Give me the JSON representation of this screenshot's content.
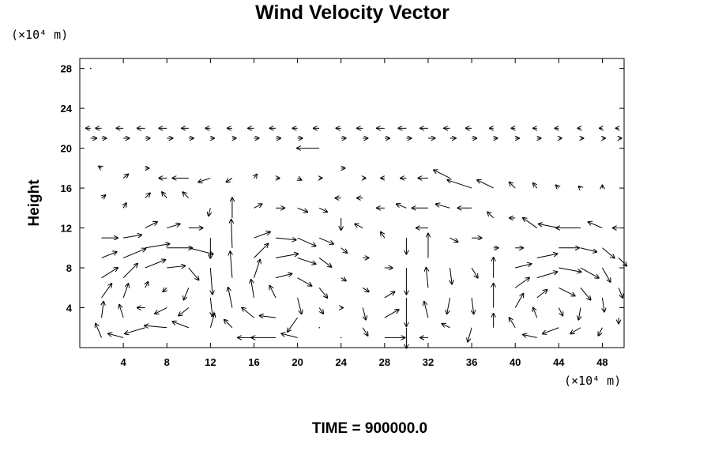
{
  "chart_data": {
    "type": "vector-field",
    "title": "Wind Velocity Vector",
    "ylabel": "Height",
    "y_unit": "(×10⁴ m)",
    "x_unit": "(×10⁴ m)",
    "xlim": [
      0,
      50
    ],
    "ylim": [
      0,
      29
    ],
    "x_ticks": [
      4,
      8,
      12,
      16,
      20,
      24,
      28,
      32,
      36,
      40,
      44,
      48
    ],
    "y_ticks": [
      4,
      8,
      12,
      16,
      20,
      24,
      28
    ],
    "time_label": "TIME = 900000.0",
    "grid": false,
    "colors": {
      "axis": "#000000",
      "arrow": "#000000",
      "background": "#ffffff"
    },
    "vectors": [
      {
        "x": 1,
        "y": 28,
        "u": 0,
        "v": 0
      },
      {
        "x": 1,
        "y": 22,
        "u": -0.5,
        "v": 0
      },
      {
        "x": 1,
        "y": 21,
        "u": 0.6,
        "v": 0
      },
      {
        "x": 2,
        "y": 22,
        "u": -0.6,
        "v": 0
      },
      {
        "x": 2,
        "y": 21,
        "u": 0.5,
        "v": 0
      },
      {
        "x": 2,
        "y": 18,
        "u": -0.3,
        "v": 0.2
      },
      {
        "x": 2,
        "y": 15,
        "u": 0.4,
        "v": 0.3
      },
      {
        "x": 2,
        "y": 11,
        "u": 1.6,
        "v": 0
      },
      {
        "x": 2,
        "y": 9,
        "u": 1.5,
        "v": 0.6
      },
      {
        "x": 2,
        "y": 7,
        "u": 1.6,
        "v": 1.0
      },
      {
        "x": 2,
        "y": 5,
        "u": 1.0,
        "v": 1.4
      },
      {
        "x": 2,
        "y": 3,
        "u": 0.2,
        "v": 1.6
      },
      {
        "x": 2,
        "y": 1,
        "u": -0.6,
        "v": 1.4
      },
      {
        "x": 4,
        "y": 22,
        "u": -0.7,
        "v": 0
      },
      {
        "x": 4,
        "y": 21,
        "u": 0.6,
        "v": 0
      },
      {
        "x": 4,
        "y": 17,
        "u": 0.5,
        "v": 0.4
      },
      {
        "x": 4,
        "y": 14,
        "u": 0.3,
        "v": 0.5
      },
      {
        "x": 4,
        "y": 11,
        "u": 1.8,
        "v": 0.3
      },
      {
        "x": 4,
        "y": 9,
        "u": 2.2,
        "v": 0.9
      },
      {
        "x": 4,
        "y": 7,
        "u": 1.4,
        "v": 1.4
      },
      {
        "x": 4,
        "y": 5,
        "u": 0.5,
        "v": 1.4
      },
      {
        "x": 4,
        "y": 3,
        "u": -0.4,
        "v": 1.3
      },
      {
        "x": 4,
        "y": 1,
        "u": -1.5,
        "v": 0.4
      },
      {
        "x": 6,
        "y": 22,
        "u": -0.8,
        "v": 0
      },
      {
        "x": 6,
        "y": 21,
        "u": 0.5,
        "v": 0
      },
      {
        "x": 6,
        "y": 18,
        "u": 0.4,
        "v": 0
      },
      {
        "x": 6,
        "y": 15,
        "u": 0.5,
        "v": 0.5
      },
      {
        "x": 6,
        "y": 12,
        "u": 1.2,
        "v": 0.6
      },
      {
        "x": 6,
        "y": 10,
        "u": 2.4,
        "v": 0.4
      },
      {
        "x": 6,
        "y": 8,
        "u": 2.0,
        "v": 0.8
      },
      {
        "x": 6,
        "y": 6,
        "u": 0.3,
        "v": 0.6
      },
      {
        "x": 6,
        "y": 4,
        "u": -0.8,
        "v": 0
      },
      {
        "x": 6,
        "y": 2,
        "u": -2.0,
        "v": -0.6
      },
      {
        "x": 8,
        "y": 22,
        "u": -0.8,
        "v": 0
      },
      {
        "x": 8,
        "y": 21,
        "u": 0.6,
        "v": 0
      },
      {
        "x": 8,
        "y": 17,
        "u": -0.8,
        "v": 0
      },
      {
        "x": 8,
        "y": 15,
        "u": -0.5,
        "v": 0.6
      },
      {
        "x": 8,
        "y": 12,
        "u": 1.3,
        "v": 0.4
      },
      {
        "x": 8,
        "y": 10,
        "u": 2.5,
        "v": 0
      },
      {
        "x": 8,
        "y": 8,
        "u": 1.8,
        "v": 0.2
      },
      {
        "x": 8,
        "y": 6,
        "u": -0.4,
        "v": -0.4
      },
      {
        "x": 8,
        "y": 4,
        "u": -1.2,
        "v": -0.6
      },
      {
        "x": 8,
        "y": 2,
        "u": -2.2,
        "v": 0.2
      },
      {
        "x": 10,
        "y": 22,
        "u": -0.7,
        "v": 0
      },
      {
        "x": 10,
        "y": 21,
        "u": 0.5,
        "v": 0
      },
      {
        "x": 10,
        "y": 17,
        "u": -1.6,
        "v": 0
      },
      {
        "x": 10,
        "y": 15,
        "u": -0.6,
        "v": 0.6
      },
      {
        "x": 10,
        "y": 12,
        "u": 1.4,
        "v": 0
      },
      {
        "x": 10,
        "y": 10,
        "u": 2.4,
        "v": -0.6
      },
      {
        "x": 10,
        "y": 8,
        "u": 1.0,
        "v": -1.2
      },
      {
        "x": 10,
        "y": 6,
        "u": -0.5,
        "v": -1.2
      },
      {
        "x": 10,
        "y": 4,
        "u": -1.0,
        "v": -0.8
      },
      {
        "x": 10,
        "y": 2,
        "u": -1.6,
        "v": 0.6
      },
      {
        "x": 12,
        "y": 22,
        "u": -0.5,
        "v": 0
      },
      {
        "x": 12,
        "y": 21,
        "u": 0.4,
        "v": 0
      },
      {
        "x": 12,
        "y": 17,
        "u": -1.2,
        "v": -0.4
      },
      {
        "x": 12,
        "y": 14,
        "u": -0.2,
        "v": -0.8
      },
      {
        "x": 12,
        "y": 11,
        "u": 0,
        "v": -2.0
      },
      {
        "x": 12,
        "y": 8,
        "u": 0.2,
        "v": -2.6
      },
      {
        "x": 12,
        "y": 5,
        "u": 0.2,
        "v": -1.8
      },
      {
        "x": 12,
        "y": 2,
        "u": 0.4,
        "v": 1.4
      },
      {
        "x": 14,
        "y": 22,
        "u": -0.5,
        "v": 0
      },
      {
        "x": 14,
        "y": 21,
        "u": 0.4,
        "v": 0
      },
      {
        "x": 14,
        "y": 17,
        "u": -0.6,
        "v": -0.4
      },
      {
        "x": 14,
        "y": 13,
        "u": 0,
        "v": 2.0
      },
      {
        "x": 14,
        "y": 10,
        "u": -0.1,
        "v": 2.8
      },
      {
        "x": 14,
        "y": 7,
        "u": -0.2,
        "v": 2.6
      },
      {
        "x": 14,
        "y": 4,
        "u": -0.4,
        "v": 2.0
      },
      {
        "x": 14,
        "y": 2,
        "u": -0.8,
        "v": 0.8
      },
      {
        "x": 16,
        "y": 22,
        "u": -0.6,
        "v": 0
      },
      {
        "x": 16,
        "y": 21,
        "u": 0.5,
        "v": 0
      },
      {
        "x": 16,
        "y": 17,
        "u": 0.3,
        "v": 0.4
      },
      {
        "x": 16,
        "y": 14,
        "u": 0.8,
        "v": 0.4
      },
      {
        "x": 16,
        "y": 11,
        "u": 1.6,
        "v": 0.6
      },
      {
        "x": 16,
        "y": 9,
        "u": 1.4,
        "v": 1.4
      },
      {
        "x": 16,
        "y": 7,
        "u": 0.6,
        "v": 1.8
      },
      {
        "x": 16,
        "y": 5,
        "u": -0.3,
        "v": 1.8
      },
      {
        "x": 16,
        "y": 3,
        "u": -1.2,
        "v": 1.0
      },
      {
        "x": 16,
        "y": 1,
        "u": -1.6,
        "v": 0
      },
      {
        "x": 18,
        "y": 22,
        "u": -0.6,
        "v": 0
      },
      {
        "x": 18,
        "y": 21,
        "u": 0.5,
        "v": 0
      },
      {
        "x": 18,
        "y": 17,
        "u": 0.4,
        "v": 0
      },
      {
        "x": 18,
        "y": 14,
        "u": 0.9,
        "v": 0
      },
      {
        "x": 18,
        "y": 11,
        "u": 2.0,
        "v": -0.2
      },
      {
        "x": 18,
        "y": 9,
        "u": 2.2,
        "v": 0.4
      },
      {
        "x": 18,
        "y": 7,
        "u": 1.6,
        "v": 0.4
      },
      {
        "x": 18,
        "y": 5,
        "u": -0.6,
        "v": 1.2
      },
      {
        "x": 18,
        "y": 3,
        "u": -1.6,
        "v": 0.2
      },
      {
        "x": 18,
        "y": 1,
        "u": -2.4,
        "v": 0
      },
      {
        "x": 20,
        "y": 22,
        "u": -0.5,
        "v": 0
      },
      {
        "x": 20,
        "y": 21,
        "u": 0.5,
        "v": 0
      },
      {
        "x": 20,
        "y": 17,
        "u": 0.4,
        "v": -0.2
      },
      {
        "x": 20,
        "y": 14,
        "u": 1.0,
        "v": -0.4
      },
      {
        "x": 20,
        "y": 11,
        "u": 1.8,
        "v": -0.8
      },
      {
        "x": 20,
        "y": 9,
        "u": 1.8,
        "v": -0.6
      },
      {
        "x": 20,
        "y": 7,
        "u": 1.4,
        "v": -0.8
      },
      {
        "x": 20,
        "y": 5,
        "u": 0.4,
        "v": -1.6
      },
      {
        "x": 20,
        "y": 3,
        "u": -1.0,
        "v": -1.4
      },
      {
        "x": 20,
        "y": 1,
        "u": -1.6,
        "v": 0.4
      },
      {
        "x": 22,
        "y": 22,
        "u": -0.6,
        "v": 0
      },
      {
        "x": 22,
        "y": 20,
        "u": -2.2,
        "v": 0
      },
      {
        "x": 22,
        "y": 17,
        "u": 0.3,
        "v": 0
      },
      {
        "x": 22,
        "y": 14,
        "u": 0.8,
        "v": -0.4
      },
      {
        "x": 22,
        "y": 11,
        "u": 1.4,
        "v": -0.6
      },
      {
        "x": 22,
        "y": 9,
        "u": 1.2,
        "v": -0.9
      },
      {
        "x": 22,
        "y": 6,
        "u": 0.8,
        "v": -1.0
      },
      {
        "x": 22,
        "y": 4,
        "u": 0.4,
        "v": -0.6
      },
      {
        "x": 22,
        "y": 2,
        "u": 0,
        "v": 0
      },
      {
        "x": 24,
        "y": 22,
        "u": -0.5,
        "v": 0
      },
      {
        "x": 24,
        "y": 21,
        "u": 0.5,
        "v": 0
      },
      {
        "x": 24,
        "y": 18,
        "u": 0.4,
        "v": 0
      },
      {
        "x": 24,
        "y": 15,
        "u": -0.6,
        "v": 0
      },
      {
        "x": 24,
        "y": 13,
        "u": 0,
        "v": -1.2
      },
      {
        "x": 24,
        "y": 10,
        "u": 0.6,
        "v": -0.5
      },
      {
        "x": 24,
        "y": 7,
        "u": 0.5,
        "v": -0.3
      },
      {
        "x": 24,
        "y": 4,
        "u": 0.2,
        "v": 0
      },
      {
        "x": 24,
        "y": 1,
        "u": 0,
        "v": 0
      },
      {
        "x": 26,
        "y": 22,
        "u": -0.6,
        "v": 0
      },
      {
        "x": 26,
        "y": 21,
        "u": 0.5,
        "v": 0
      },
      {
        "x": 26,
        "y": 17,
        "u": 0.3,
        "v": 0
      },
      {
        "x": 26,
        "y": 15,
        "u": -0.6,
        "v": 0
      },
      {
        "x": 26,
        "y": 12,
        "u": -0.8,
        "v": 0.4
      },
      {
        "x": 26,
        "y": 9,
        "u": 0.6,
        "v": 0
      },
      {
        "x": 26,
        "y": 6,
        "u": 0.6,
        "v": -0.4
      },
      {
        "x": 26,
        "y": 4,
        "u": 0.3,
        "v": -1.2
      },
      {
        "x": 26,
        "y": 2,
        "u": 0.5,
        "v": -0.8
      },
      {
        "x": 28,
        "y": 22,
        "u": -0.8,
        "v": 0
      },
      {
        "x": 28,
        "y": 21,
        "u": 0.5,
        "v": 0
      },
      {
        "x": 28,
        "y": 17,
        "u": -0.4,
        "v": 0
      },
      {
        "x": 28,
        "y": 14,
        "u": -0.8,
        "v": 0
      },
      {
        "x": 28,
        "y": 11,
        "u": -0.4,
        "v": 0.6
      },
      {
        "x": 28,
        "y": 8,
        "u": 0.8,
        "v": 0
      },
      {
        "x": 28,
        "y": 5,
        "u": 1.0,
        "v": 0.6
      },
      {
        "x": 28,
        "y": 3,
        "u": 1.4,
        "v": 0.8
      },
      {
        "x": 28,
        "y": 1,
        "u": 2.0,
        "v": 0
      },
      {
        "x": 30,
        "y": 22,
        "u": -0.8,
        "v": 0
      },
      {
        "x": 30,
        "y": 21,
        "u": 0.5,
        "v": 0
      },
      {
        "x": 30,
        "y": 17,
        "u": -0.6,
        "v": 0
      },
      {
        "x": 30,
        "y": 14,
        "u": -1.0,
        "v": 0.4
      },
      {
        "x": 30,
        "y": 11,
        "u": 0,
        "v": -1.6
      },
      {
        "x": 30,
        "y": 8,
        "u": 0,
        "v": -2.6
      },
      {
        "x": 30,
        "y": 5,
        "u": 0,
        "v": -2.8
      },
      {
        "x": 30,
        "y": 2,
        "u": 0,
        "v": -2.0
      },
      {
        "x": 32,
        "y": 22,
        "u": -0.8,
        "v": 0
      },
      {
        "x": 32,
        "y": 21,
        "u": 0.7,
        "v": 0
      },
      {
        "x": 32,
        "y": 17,
        "u": -1.0,
        "v": 0
      },
      {
        "x": 32,
        "y": 14,
        "u": -1.6,
        "v": 0
      },
      {
        "x": 32,
        "y": 12,
        "u": -1.2,
        "v": 0
      },
      {
        "x": 32,
        "y": 9,
        "u": 0,
        "v": 2.4
      },
      {
        "x": 32,
        "y": 6,
        "u": -0.2,
        "v": 2.0
      },
      {
        "x": 32,
        "y": 3,
        "u": -0.4,
        "v": 1.6
      },
      {
        "x": 32,
        "y": 1,
        "u": -0.8,
        "v": 0
      },
      {
        "x": 34,
        "y": 22,
        "u": -0.6,
        "v": 0
      },
      {
        "x": 34,
        "y": 21,
        "u": 0.6,
        "v": 0
      },
      {
        "x": 34,
        "y": 17,
        "u": -1.6,
        "v": 0.8
      },
      {
        "x": 34,
        "y": 14,
        "u": -1.4,
        "v": 0.4
      },
      {
        "x": 34,
        "y": 11,
        "u": 0.8,
        "v": -0.4
      },
      {
        "x": 34,
        "y": 8,
        "u": 0.2,
        "v": -1.6
      },
      {
        "x": 34,
        "y": 5,
        "u": -0.3,
        "v": -1.6
      },
      {
        "x": 34,
        "y": 2,
        "u": -0.8,
        "v": 0.4
      },
      {
        "x": 36,
        "y": 22,
        "u": -0.6,
        "v": 0
      },
      {
        "x": 36,
        "y": 21,
        "u": 0.5,
        "v": 0
      },
      {
        "x": 36,
        "y": 16,
        "u": -2.4,
        "v": 0.8
      },
      {
        "x": 36,
        "y": 14,
        "u": -1.4,
        "v": 0
      },
      {
        "x": 36,
        "y": 11,
        "u": 1.0,
        "v": 0
      },
      {
        "x": 36,
        "y": 8,
        "u": 0.6,
        "v": -1.0
      },
      {
        "x": 36,
        "y": 5,
        "u": 0.2,
        "v": -1.6
      },
      {
        "x": 36,
        "y": 2,
        "u": -0.4,
        "v": -1.4
      },
      {
        "x": 38,
        "y": 22,
        "u": -0.4,
        "v": 0
      },
      {
        "x": 38,
        "y": 21,
        "u": 0.4,
        "v": 0
      },
      {
        "x": 38,
        "y": 16,
        "u": -1.6,
        "v": 0.8
      },
      {
        "x": 38,
        "y": 13,
        "u": -0.6,
        "v": 0.6
      },
      {
        "x": 38,
        "y": 10,
        "u": 0.5,
        "v": 0
      },
      {
        "x": 38,
        "y": 7,
        "u": 0,
        "v": 2.0
      },
      {
        "x": 38,
        "y": 4,
        "u": 0,
        "v": 2.4
      },
      {
        "x": 38,
        "y": 2,
        "u": 0,
        "v": 1.4
      },
      {
        "x": 40,
        "y": 22,
        "u": -0.4,
        "v": 0
      },
      {
        "x": 40,
        "y": 21,
        "u": 0.4,
        "v": 0
      },
      {
        "x": 40,
        "y": 16,
        "u": -0.6,
        "v": 0.6
      },
      {
        "x": 40,
        "y": 13,
        "u": -0.6,
        "v": 0
      },
      {
        "x": 40,
        "y": 10,
        "u": 0.8,
        "v": 0
      },
      {
        "x": 40,
        "y": 8,
        "u": 1.6,
        "v": 0.4
      },
      {
        "x": 40,
        "y": 6,
        "u": 1.4,
        "v": 1.0
      },
      {
        "x": 40,
        "y": 4,
        "u": 0.8,
        "v": 1.4
      },
      {
        "x": 40,
        "y": 2,
        "u": -0.6,
        "v": 1.0
      },
      {
        "x": 42,
        "y": 22,
        "u": -0.4,
        "v": 0
      },
      {
        "x": 42,
        "y": 21,
        "u": 0.4,
        "v": 0
      },
      {
        "x": 42,
        "y": 16,
        "u": -0.4,
        "v": 0.5
      },
      {
        "x": 42,
        "y": 12,
        "u": -1.4,
        "v": 1.0
      },
      {
        "x": 42,
        "y": 9,
        "u": 2.0,
        "v": 0.4
      },
      {
        "x": 42,
        "y": 7,
        "u": 2.0,
        "v": 0.6
      },
      {
        "x": 42,
        "y": 5,
        "u": 1.0,
        "v": 0.8
      },
      {
        "x": 42,
        "y": 3,
        "u": -0.4,
        "v": 1.0
      },
      {
        "x": 42,
        "y": 1,
        "u": -1.4,
        "v": 0.3
      },
      {
        "x": 44,
        "y": 22,
        "u": -0.4,
        "v": 0
      },
      {
        "x": 44,
        "y": 21,
        "u": 0.3,
        "v": 0
      },
      {
        "x": 44,
        "y": 16,
        "u": -0.3,
        "v": 0.3
      },
      {
        "x": 44,
        "y": 12,
        "u": -2.0,
        "v": 0.4
      },
      {
        "x": 44,
        "y": 10,
        "u": 2.0,
        "v": 0
      },
      {
        "x": 44,
        "y": 8,
        "u": 2.2,
        "v": -0.4
      },
      {
        "x": 44,
        "y": 6,
        "u": 1.6,
        "v": -0.8
      },
      {
        "x": 44,
        "y": 4,
        "u": 0.4,
        "v": -0.8
      },
      {
        "x": 44,
        "y": 2,
        "u": -1.6,
        "v": -0.6
      },
      {
        "x": 46,
        "y": 22,
        "u": -0.3,
        "v": 0
      },
      {
        "x": 46,
        "y": 21,
        "u": 0.3,
        "v": 0
      },
      {
        "x": 46,
        "y": 16,
        "u": -0.2,
        "v": 0.2
      },
      {
        "x": 46,
        "y": 12,
        "u": -2.4,
        "v": 0
      },
      {
        "x": 46,
        "y": 10,
        "u": 1.6,
        "v": -0.4
      },
      {
        "x": 46,
        "y": 8,
        "u": 1.8,
        "v": -1.0
      },
      {
        "x": 46,
        "y": 6,
        "u": 1.0,
        "v": -1.2
      },
      {
        "x": 46,
        "y": 4,
        "u": -0.2,
        "v": -1.2
      },
      {
        "x": 46,
        "y": 2,
        "u": -1.0,
        "v": -0.6
      },
      {
        "x": 48,
        "y": 22,
        "u": -0.3,
        "v": 0
      },
      {
        "x": 48,
        "y": 21,
        "u": 0.3,
        "v": 0
      },
      {
        "x": 48,
        "y": 16,
        "u": 0,
        "v": 0.3
      },
      {
        "x": 48,
        "y": 12,
        "u": -1.4,
        "v": 0.6
      },
      {
        "x": 48,
        "y": 10,
        "u": 1.2,
        "v": -1.0
      },
      {
        "x": 48,
        "y": 8,
        "u": 0.8,
        "v": -1.4
      },
      {
        "x": 48,
        "y": 5,
        "u": 0.2,
        "v": -1.4
      },
      {
        "x": 48,
        "y": 2,
        "u": -0.4,
        "v": -0.8
      },
      {
        "x": 49.5,
        "y": 22,
        "u": -0.3,
        "v": 0
      },
      {
        "x": 49.5,
        "y": 21,
        "u": 0.3,
        "v": 0
      },
      {
        "x": 49.5,
        "y": 12,
        "u": -0.6,
        "v": 0
      },
      {
        "x": 49.5,
        "y": 9,
        "u": 0.8,
        "v": -0.8
      },
      {
        "x": 49.5,
        "y": 6,
        "u": 0.4,
        "v": -1.0
      },
      {
        "x": 49.5,
        "y": 3,
        "u": 0,
        "v": -0.6
      }
    ]
  }
}
